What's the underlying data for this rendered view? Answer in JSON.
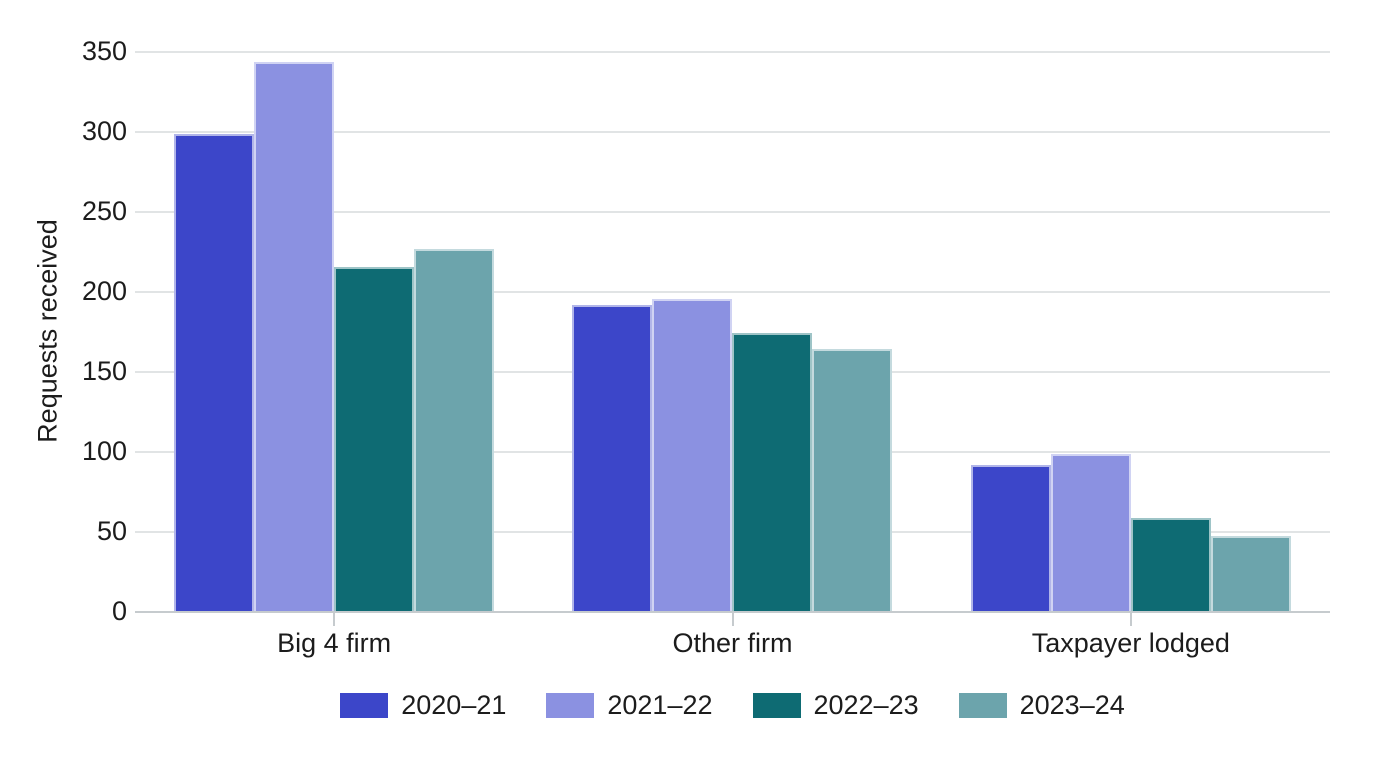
{
  "chart_data": {
    "type": "bar",
    "title": "",
    "xlabel": "",
    "ylabel": "Requests received",
    "ylim": [
      0,
      350
    ],
    "yticks": [
      0,
      50,
      100,
      150,
      200,
      250,
      300,
      350
    ],
    "grid": true,
    "legend_position": "bottom",
    "categories": [
      "Big 4 firm",
      "Other firm",
      "Taxpayer lodged"
    ],
    "series": [
      {
        "name": "2020–21",
        "color": "#3c46c9",
        "values": [
          298,
          191,
          91
        ]
      },
      {
        "name": "2021–22",
        "color": "#8b91e1",
        "values": [
          343,
          195,
          98
        ]
      },
      {
        "name": "2022–23",
        "color": "#0e6b73",
        "values": [
          215,
          174,
          58
        ]
      },
      {
        "name": "2023–24",
        "color": "#6ca4ac",
        "values": [
          226,
          164,
          47
        ]
      }
    ]
  },
  "colors": {
    "gridline": "#e1e4e5",
    "axis_line": "#c6cbce",
    "text": "#1c1c1c",
    "background": "#ffffff"
  }
}
